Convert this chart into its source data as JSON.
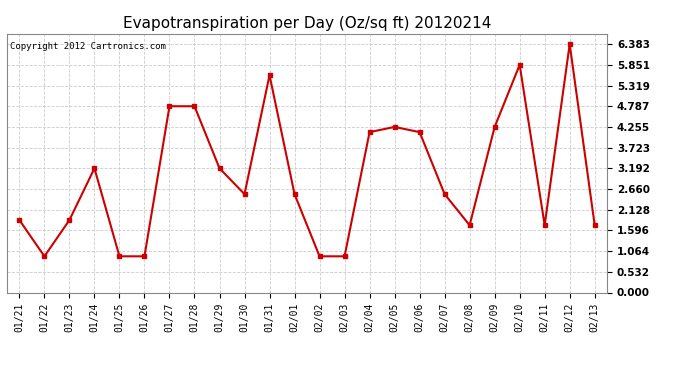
{
  "title": "Evapotranspiration per Day (Oz/sq ft) 20120214",
  "copyright": "Copyright 2012 Cartronics.com",
  "x_labels": [
    "01/21",
    "01/22",
    "01/23",
    "01/24",
    "01/25",
    "01/26",
    "01/27",
    "01/28",
    "01/29",
    "01/30",
    "01/31",
    "02/01",
    "02/02",
    "02/03",
    "02/04",
    "02/05",
    "02/06",
    "02/07",
    "02/08",
    "02/09",
    "02/10",
    "02/11",
    "02/12",
    "02/13"
  ],
  "y_values": [
    1.862,
    0.93,
    1.862,
    3.192,
    0.93,
    0.93,
    4.787,
    4.787,
    3.192,
    2.528,
    5.585,
    2.528,
    0.93,
    0.93,
    4.122,
    4.255,
    4.122,
    2.528,
    1.729,
    4.255,
    5.851,
    1.729,
    6.383,
    1.729
  ],
  "line_color": "#cc0000",
  "marker": "s",
  "marker_size": 2.5,
  "line_width": 1.5,
  "y_ticks": [
    0.0,
    0.532,
    1.064,
    1.596,
    2.128,
    2.66,
    3.192,
    3.723,
    4.255,
    4.787,
    5.319,
    5.851,
    6.383
  ],
  "ylim": [
    0.0,
    6.65
  ],
  "background_color": "#ffffff",
  "grid_color": "#cccccc",
  "title_fontsize": 11,
  "copyright_fontsize": 6.5,
  "tick_fontsize": 7.5,
  "x_tick_fontsize": 7
}
